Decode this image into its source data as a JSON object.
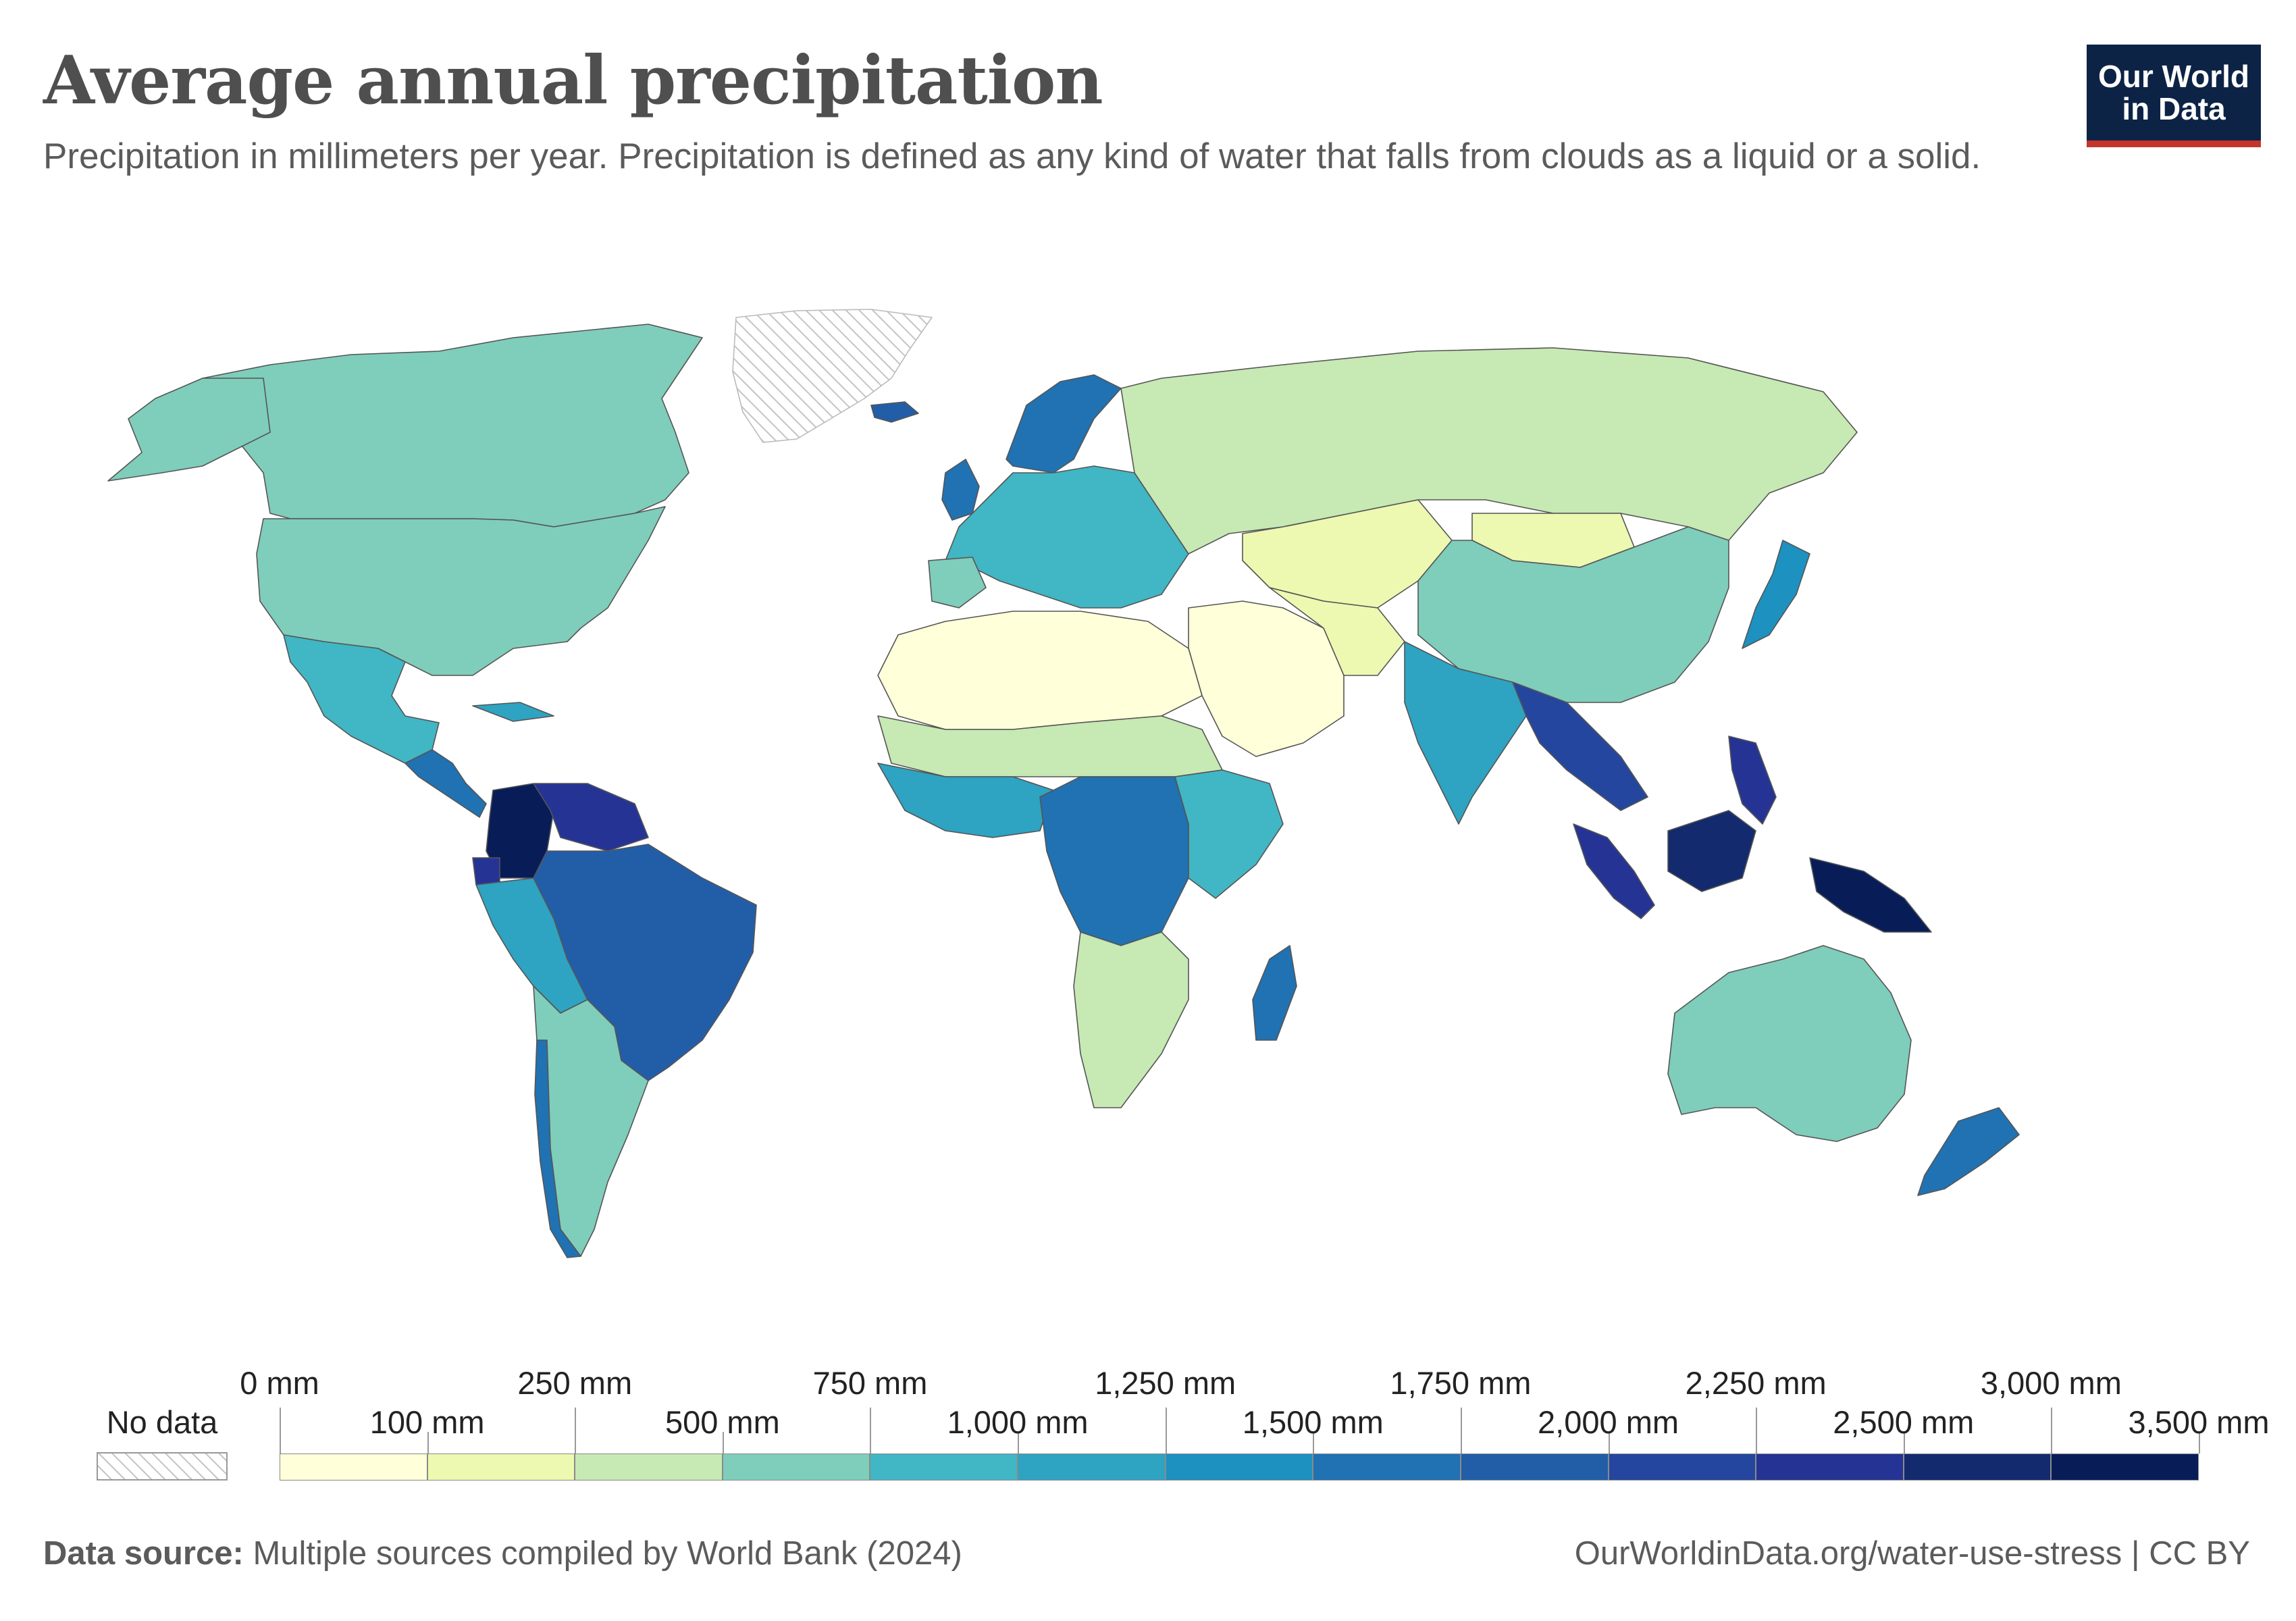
{
  "header": {
    "title": "Average annual precipitation",
    "subtitle": "Precipitation in millimeters per year. Precipitation is defined as any kind of water that falls from clouds as a liquid or a solid."
  },
  "logo": {
    "line1": "Our World",
    "line2": "in Data",
    "bg": "#0d2346",
    "accent": "#c4342c"
  },
  "legend": {
    "no_data_label": "No data",
    "bins": [
      {
        "from": "0 mm",
        "to": "100 mm",
        "color": "#ffffd9"
      },
      {
        "from": "100 mm",
        "to": "250 mm",
        "color": "#edf8b1"
      },
      {
        "from": "250 mm",
        "to": "500 mm",
        "color": "#c7e9b4"
      },
      {
        "from": "500 mm",
        "to": "750 mm",
        "color": "#7fcdbb"
      },
      {
        "from": "750 mm",
        "to": "1,000 mm",
        "color": "#41b6c4"
      },
      {
        "from": "1,000 mm",
        "to": "1,250 mm",
        "color": "#2ea3c2"
      },
      {
        "from": "1,250 mm",
        "to": "1,500 mm",
        "color": "#1d91c0"
      },
      {
        "from": "1,500 mm",
        "to": "1,750 mm",
        "color": "#2072b2"
      },
      {
        "from": "1,750 mm",
        "to": "2,000 mm",
        "color": "#225ea8"
      },
      {
        "from": "2,000 mm",
        "to": "2,250 mm",
        "color": "#24469e"
      },
      {
        "from": "2,250 mm",
        "to": "2,500 mm",
        "color": "#253494"
      },
      {
        "from": "2,500 mm",
        "to": "3,000 mm",
        "color": "#142a6e"
      },
      {
        "from": "3,000 mm",
        "to": "3,500 mm",
        "color": "#081d58"
      }
    ],
    "tick_labels": [
      "0 mm",
      "100 mm",
      "250 mm",
      "500 mm",
      "750 mm",
      "1,000 mm",
      "1,250 mm",
      "1,500 mm",
      "1,750 mm",
      "2,000 mm",
      "2,250 mm",
      "2,500 mm",
      "3,000 mm",
      "3,500 mm"
    ]
  },
  "footer": {
    "source_label": "Data source:",
    "source_text": "Multiple sources compiled by World Bank (2024)",
    "url_license": "OurWorldinData.org/water-use-stress | CC BY"
  }
}
